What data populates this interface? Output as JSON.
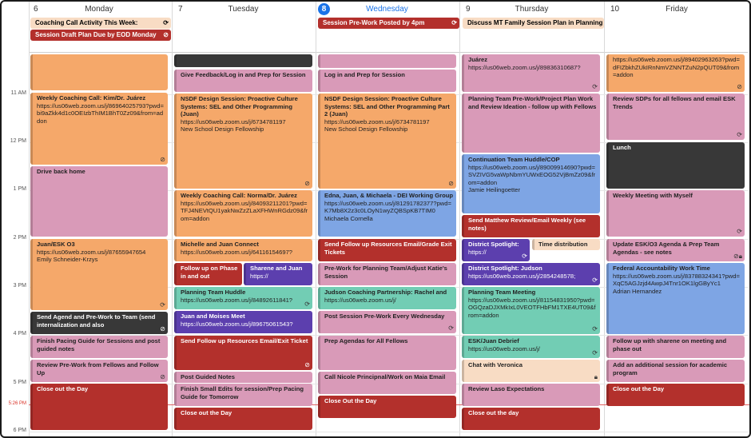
{
  "days": [
    {
      "num": "6",
      "name": "Monday"
    },
    {
      "num": "7",
      "name": "Tuesday"
    },
    {
      "num": "8",
      "name": "Wednesday"
    },
    {
      "num": "9",
      "name": "Thursday"
    },
    {
      "num": "10",
      "name": "Friday"
    }
  ],
  "times": [
    "11 AM",
    "12 PM",
    "1 PM",
    "2 PM",
    "3 PM",
    "4 PM",
    "5 PM",
    "5:26 PM",
    "6 PM"
  ],
  "allday": {
    "mon_1": "Coaching Call Activity This Week:",
    "mon_2": "Session Draft Plan Due by EOD Monday",
    "wed_1": "Session Pre-Work Posted by 4pm",
    "thu_1": "Discuss MT Family Session Plan in Planning"
  },
  "events": {
    "mon_1_t": "Weekly Coaching Call: Kim/Dr. Juárez",
    "mon_1_d": "https://us06web.zoom.us/j/86964025793?pwd=bi9aZkk4d1c0OEIzbThIM1BhT0Zz09&from=addon",
    "mon_2_t": "Drive back home",
    "mon_3_t": "Juan/ESK O3",
    "mon_3_d": "https://us06web.zoom.us/j/87655947654\nEmily Schneider-Krzys",
    "mon_4_t": "Send Agend and Pre-Work to Team (send internalization and also",
    "mon_5_t": "Finish Pacing Guide for Sessions and post guided notes",
    "mon_6_t": "Review Pre-Work from Fellows and Follow Up",
    "mon_7_t": "Close out the Day",
    "tue_1_t": "Give Feedback/Log in and Prep for Session",
    "tue_2_t": "NSDF Design Session: Proactive Culture Systems: SEL and Other Programming (Juan)",
    "tue_2_d": "https://us06web.zoom.us/j/6734781197\nNew School Design Fellowship",
    "tue_3_t": "Weekly Coaching Call: Norma/Dr. Juárez",
    "tue_3_d": "https://us06web.zoom.us/j/84093211201?pwd=TFJ4NEVtQU1yakNwZzZLaXFHWnRGdz09&from=addon",
    "tue_4_t": "Michelle and Juan Connect",
    "tue_4_d": "https://us06web.zoom.us/j/64116154697?",
    "tue_5_t": "Follow up on Phase in and out",
    "tue_6_t": "Sharene and Juan",
    "tue_6_d": "https://",
    "tue_7_t": "Planning Team Huddle",
    "tue_7_d": "https://us06web.zoom.us/j/84892611841?",
    "tue_8_t": "Juan and Moises Meet",
    "tue_8_d": "https://us06web.zoom.us/j/89675061543?",
    "tue_9_t": "Send Follow up Resources Email/Exit Ticket",
    "tue_10_t": "Post Guided Notes",
    "tue_11_t": "Finish Small Edits for session/Prep Pacing Guide for Tomorrow",
    "tue_12_t": "Close out the Day",
    "wed_1_t": "Log in and Prep for Session",
    "wed_2_t": "NSDF Design Session: Proactive Culture Systems: SEL and Other Programming Part 2 (Juan)",
    "wed_2_d": "https://us06web.zoom.us/j/6734781197\nNew School Design Fellowship",
    "wed_3_t": "Edna, Juan, & Michaela - DEI Working Group",
    "wed_3_d": "https://us06web.zoom.us/j/81291782377?pwd=K7Mb8X2z3c0LOyN1wyZQBSpKB7TIM0\nMichaela Cornella",
    "wed_4_t": "Send Follow up Resources Email/Grade Exit Tickets",
    "wed_5_t": "Pre-Work for Planning Team/Adjust Katie's Session",
    "wed_6_t": "Judson Coaching Partnership: Rachel and",
    "wed_6_d": "https://us06web.zoom.us/j/",
    "wed_7_t": "Post Session Pre-Work Every Wednesday",
    "wed_8_t": "Prep Agendas for All Fellows",
    "wed_9_t": "Call Nicole Principnal/Work on Maia Email",
    "wed_10_t": "Close Out the Day",
    "thu_1_t": "Juárez",
    "thu_1_d": "https://us06web.zoom.us/j/89836310687?",
    "thu_2_t": "Planning Team Pre-Work/Project Plan Work and Review Ideation - follow up with Fellows",
    "thu_3_t": "Continuation Team Huddle/COP",
    "thu_3_d": "https://us06web.zoom.us/j/89009914690?pwd=SVZIVG5vaWpNbmYUWxEOG52VjBmZz09&from=addon\nJamie Heilingoetter",
    "thu_4_t": "Send Matthew Review/Email Weekly (see notes)",
    "thu_5_t": "District Spotlight:",
    "thu_5_d": "https://",
    "thu_6_t": "Time distribution",
    "thu_7_t": "District Spotlight: Judson",
    "thu_7_d": "https://us06web.zoom.us/j/2854248578;",
    "thu_8_t": "Planning Team Meeting",
    "thu_8_d": "https://us06web.zoom.us/j/81154831950?pwd=OGQzaDJXMkIxL0VEOTFHbFM1TXE4UT09&from=addon",
    "thu_9_t": "ESK/Juan Debrief",
    "thu_9_d": "https://us06web.zoom.us/j/",
    "thu_10_t": "Chat with Veronica",
    "thu_11_t": "Review Laso Expectations",
    "thu_12_t": "Close out the day",
    "fri_1_d": "https://us06web.zoom.us/j/89402963263?pwd=dFIZbkhZUkIRnNmVZNNTZuN2pQUT09&from=addon",
    "fri_2_t": "Review SDPs for all fellows and email ESK Trends",
    "fri_3_t": "Lunch",
    "fri_4_t": "Weekly Meeting with Myself",
    "fri_5_t": "Update ESK/O3 Agenda & Prep Team Agendas - see notes",
    "fri_6_t": "Federal Accountability Work Time",
    "fri_6_d": "https://us06web.zoom.us/j/83788324341?pwd=XqC5AGJzjd4AwpJ4Tnr1OK1lgGByYc1\nAdrian Hernandez",
    "fri_7_t": "Follow up with sharene on meeting and phase out",
    "fri_8_t": "Add an additional session for academic program",
    "fri_9_t": "Close out the Day"
  }
}
